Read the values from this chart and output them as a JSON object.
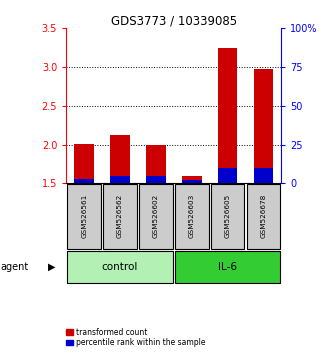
{
  "title": "GDS3773 / 10339085",
  "samples": [
    "GSM526561",
    "GSM526562",
    "GSM526602",
    "GSM526603",
    "GSM526605",
    "GSM526678"
  ],
  "groups": [
    {
      "name": "control",
      "indices": [
        0,
        1,
        2
      ],
      "color": "#b3f0b3"
    },
    {
      "name": "IL-6",
      "indices": [
        3,
        4,
        5
      ],
      "color": "#33cc33"
    }
  ],
  "red_values": [
    2.01,
    2.13,
    1.99,
    1.6,
    3.24,
    2.97
  ],
  "blue_pct": [
    3,
    5,
    5,
    2,
    10,
    10
  ],
  "baseline": 1.5,
  "ylim_left": [
    1.5,
    3.5
  ],
  "ylim_right": [
    0,
    100
  ],
  "yticks_left": [
    1.5,
    2.0,
    2.5,
    3.0,
    3.5
  ],
  "yticks_right": [
    0,
    25,
    50,
    75,
    100
  ],
  "ytick_labels_right": [
    "0",
    "25",
    "50",
    "75",
    "100%"
  ],
  "red_color": "#cc0000",
  "blue_color": "#0000cc",
  "bar_width": 0.55,
  "label_red": "transformed count",
  "label_blue": "percentile rank within the sample",
  "agent_label": "agent",
  "sample_box_color": "#cccccc",
  "figsize": [
    3.31,
    3.54
  ],
  "dpi": 100
}
